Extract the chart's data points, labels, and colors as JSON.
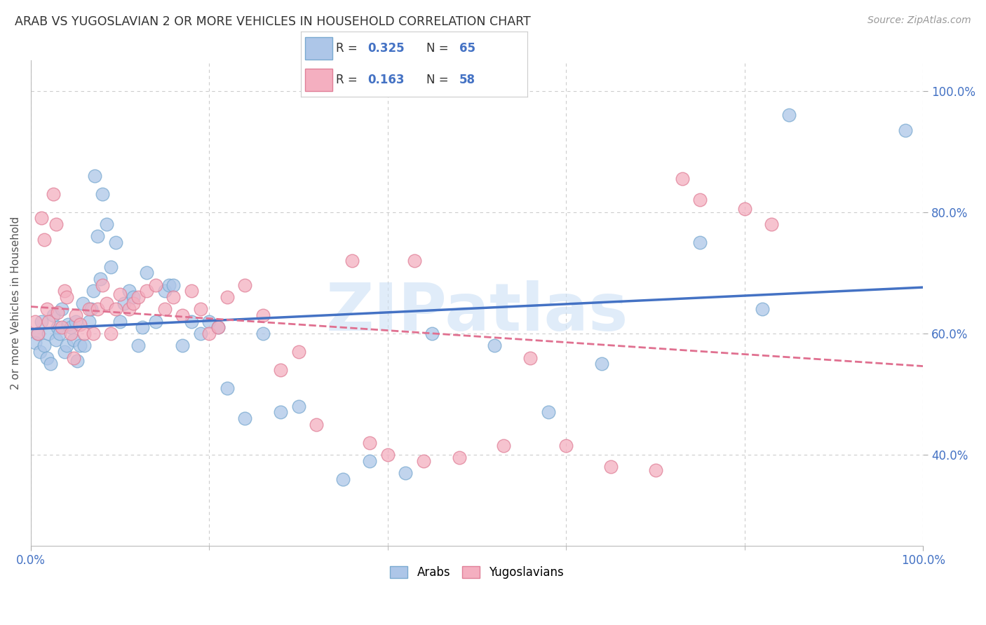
{
  "title": "ARAB VS YUGOSLAVIAN 2 OR MORE VEHICLES IN HOUSEHOLD CORRELATION CHART",
  "source": "Source: ZipAtlas.com",
  "ylabel": "2 or more Vehicles in Household",
  "xlim": [
    0,
    1
  ],
  "ylim": [
    0.25,
    1.05
  ],
  "blue_line_color": "#4472c4",
  "pink_line_color": "#e07090",
  "grid_color": "#cccccc",
  "title_color": "#333333",
  "axis_label_color": "#555555",
  "tick_label_color": "#4472c4",
  "arab_scatter_color": "#adc6e8",
  "yugo_scatter_color": "#f4afc0",
  "arab_scatter_edge": "#7aaad0",
  "yugo_scatter_edge": "#e08098",
  "arab_R": "0.325",
  "arab_N": "65",
  "yugo_R": "0.163",
  "yugo_N": "58",
  "watermark_color": "#cce0f5",
  "arab_points_x": [
    0.005,
    0.008,
    0.01,
    0.012,
    0.015,
    0.018,
    0.02,
    0.022,
    0.025,
    0.028,
    0.03,
    0.032,
    0.035,
    0.038,
    0.04,
    0.042,
    0.045,
    0.048,
    0.05,
    0.052,
    0.055,
    0.058,
    0.06,
    0.065,
    0.068,
    0.07,
    0.072,
    0.075,
    0.078,
    0.08,
    0.085,
    0.09,
    0.095,
    0.1,
    0.105,
    0.11,
    0.115,
    0.12,
    0.125,
    0.13,
    0.14,
    0.15,
    0.155,
    0.16,
    0.17,
    0.18,
    0.19,
    0.2,
    0.21,
    0.22,
    0.24,
    0.26,
    0.28,
    0.3,
    0.35,
    0.38,
    0.42,
    0.45,
    0.52,
    0.58,
    0.64,
    0.75,
    0.82,
    0.85,
    0.98
  ],
  "arab_points_y": [
    0.585,
    0.6,
    0.57,
    0.62,
    0.58,
    0.56,
    0.6,
    0.55,
    0.63,
    0.59,
    0.61,
    0.6,
    0.64,
    0.57,
    0.58,
    0.615,
    0.61,
    0.59,
    0.62,
    0.555,
    0.58,
    0.65,
    0.58,
    0.62,
    0.64,
    0.67,
    0.86,
    0.76,
    0.69,
    0.83,
    0.78,
    0.71,
    0.75,
    0.62,
    0.65,
    0.67,
    0.66,
    0.58,
    0.61,
    0.7,
    0.62,
    0.67,
    0.68,
    0.68,
    0.58,
    0.62,
    0.6,
    0.62,
    0.61,
    0.51,
    0.46,
    0.6,
    0.47,
    0.48,
    0.36,
    0.39,
    0.37,
    0.6,
    0.58,
    0.47,
    0.55,
    0.75,
    0.64,
    0.96,
    0.935
  ],
  "yugo_points_x": [
    0.005,
    0.008,
    0.012,
    0.015,
    0.018,
    0.02,
    0.025,
    0.028,
    0.03,
    0.035,
    0.038,
    0.04,
    0.045,
    0.048,
    0.05,
    0.055,
    0.06,
    0.065,
    0.07,
    0.075,
    0.08,
    0.085,
    0.09,
    0.095,
    0.1,
    0.11,
    0.115,
    0.12,
    0.13,
    0.14,
    0.15,
    0.16,
    0.17,
    0.18,
    0.19,
    0.2,
    0.21,
    0.22,
    0.24,
    0.26,
    0.28,
    0.3,
    0.32,
    0.36,
    0.38,
    0.4,
    0.43,
    0.44,
    0.48,
    0.53,
    0.56,
    0.6,
    0.65,
    0.7,
    0.73,
    0.75,
    0.8,
    0.83
  ],
  "yugo_points_y": [
    0.62,
    0.6,
    0.79,
    0.755,
    0.64,
    0.62,
    0.83,
    0.78,
    0.635,
    0.61,
    0.67,
    0.66,
    0.6,
    0.56,
    0.63,
    0.615,
    0.6,
    0.64,
    0.6,
    0.64,
    0.68,
    0.65,
    0.6,
    0.64,
    0.665,
    0.64,
    0.65,
    0.66,
    0.67,
    0.68,
    0.64,
    0.66,
    0.63,
    0.67,
    0.64,
    0.6,
    0.61,
    0.66,
    0.68,
    0.63,
    0.54,
    0.57,
    0.45,
    0.72,
    0.42,
    0.4,
    0.72,
    0.39,
    0.395,
    0.415,
    0.56,
    0.415,
    0.38,
    0.375,
    0.855,
    0.82,
    0.805,
    0.78
  ]
}
